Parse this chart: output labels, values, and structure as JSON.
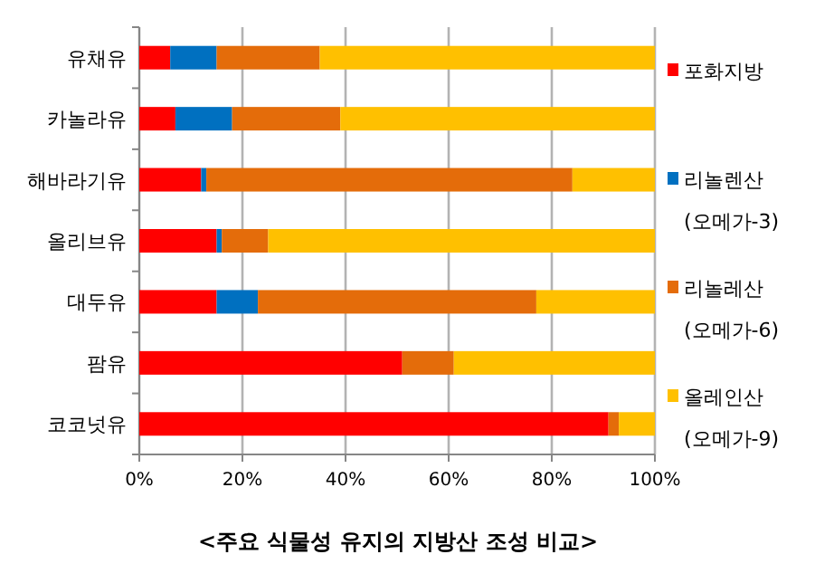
{
  "chart_data": {
    "type": "bar",
    "orientation": "horizontal",
    "stacked": true,
    "title": "<주요 식물성 유지의 지방산 조성 비교>",
    "categories": [
      "유채유",
      "카놀라유",
      "해바라기유",
      "올리브유",
      "대두유",
      "팜유",
      "코코넛유"
    ],
    "series": [
      {
        "name": "포화지방",
        "color": "#ff0000",
        "values": [
          6,
          7,
          12,
          15,
          15,
          51,
          91
        ]
      },
      {
        "name": "리놀렌산\n(오메가-3)",
        "color": "#0070c0",
        "values": [
          9,
          11,
          1,
          1,
          8,
          0,
          0
        ]
      },
      {
        "name": "리놀레산\n(오메가-6)",
        "color": "#e46c0a",
        "values": [
          20,
          21,
          71,
          9,
          54,
          10,
          2
        ]
      },
      {
        "name": "올레인산\n(오메가-9)",
        "color": "#ffc000",
        "values": [
          65,
          61,
          16,
          75,
          23,
          39,
          7
        ]
      }
    ],
    "xlim": [
      0,
      100
    ],
    "xticks": [
      {
        "value": 0,
        "label": "0%"
      },
      {
        "value": 20,
        "label": "20%"
      },
      {
        "value": 40,
        "label": "40%"
      },
      {
        "value": 60,
        "label": "60%"
      },
      {
        "value": 80,
        "label": "80%"
      },
      {
        "value": 100,
        "label": "100%"
      }
    ],
    "grid": "x",
    "legend": "right"
  }
}
